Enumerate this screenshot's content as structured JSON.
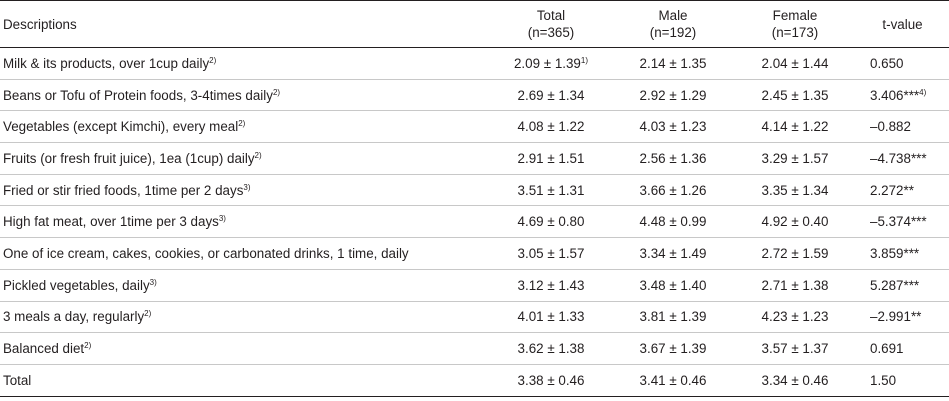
{
  "table": {
    "headers": {
      "descriptions": "Descriptions",
      "total": "Total",
      "total_n": "(n=365)",
      "male": "Male",
      "male_n": "(n=192)",
      "female": "Female",
      "female_n": "(n=173)",
      "tvalue": "t-value"
    },
    "rows": [
      {
        "desc": "Milk & its products, over 1cup daily",
        "desc_sup": "2)",
        "total": "2.09 ± 1.39",
        "total_sup": "1)",
        "male": "2.14 ± 1.35",
        "female": "2.04 ± 1.44",
        "t": "0.650",
        "t_sup": ""
      },
      {
        "desc": "Beans or Tofu of Protein foods, 3-4times daily",
        "desc_sup": "2)",
        "total": "2.69 ± 1.34",
        "total_sup": "",
        "male": "2.92 ± 1.29",
        "female": "2.45 ± 1.35",
        "t": "3.406***",
        "t_sup": "4)"
      },
      {
        "desc": "Vegetables (except Kimchi), every meal",
        "desc_sup": "2)",
        "total": "4.08 ± 1.22",
        "total_sup": "",
        "male": "4.03 ± 1.23",
        "female": "4.14 ± 1.22",
        "t": "–0.882",
        "t_sup": ""
      },
      {
        "desc": "Fruits (or fresh fruit juice), 1ea (1cup) daily",
        "desc_sup": "2)",
        "total": "2.91 ± 1.51",
        "total_sup": "",
        "male": "2.56 ± 1.36",
        "female": "3.29 ± 1.57",
        "t": "–4.738***",
        "t_sup": ""
      },
      {
        "desc": "Fried or stir fried foods, 1time per 2 days",
        "desc_sup": "3)",
        "total": "3.51 ± 1.31",
        "total_sup": "",
        "male": "3.66 ± 1.26",
        "female": "3.35 ± 1.34",
        "t": "2.272**",
        "t_sup": ""
      },
      {
        "desc": "High fat meat, over 1time per 3 days",
        "desc_sup": "3)",
        "total": "4.69 ± 0.80",
        "total_sup": "",
        "male": "4.48 ± 0.99",
        "female": "4.92 ± 0.40",
        "t": "–5.374***",
        "t_sup": ""
      },
      {
        "desc": "One of ice cream, cakes, cookies, or carbonated drinks, 1 time, daily",
        "desc_sup": "",
        "total": "3.05 ± 1.57",
        "total_sup": "",
        "male": "3.34 ± 1.49",
        "female": "2.72 ± 1.59",
        "t": "3.859***",
        "t_sup": ""
      },
      {
        "desc": "Pickled vegetables, daily",
        "desc_sup": "3)",
        "total": "3.12 ± 1.43",
        "total_sup": "",
        "male": "3.48 ± 1.40",
        "female": "2.71 ± 1.38",
        "t": "5.287***",
        "t_sup": ""
      },
      {
        "desc": "3 meals a day, regularly",
        "desc_sup": "2)",
        "total": "4.01 ± 1.33",
        "total_sup": "",
        "male": "3.81 ± 1.39",
        "female": "4.23 ± 1.23",
        "t": "–2.991**",
        "t_sup": ""
      },
      {
        "desc": "Balanced diet",
        "desc_sup": "2)",
        "total": "3.62 ± 1.38",
        "total_sup": "",
        "male": "3.67 ± 1.39",
        "female": "3.57 ± 1.37",
        "t": "0.691",
        "t_sup": ""
      },
      {
        "desc": "Total",
        "desc_sup": "",
        "total": "3.38 ± 0.46",
        "total_sup": "",
        "male": "3.41 ± 0.46",
        "female": "3.34 ± 0.46",
        "t": "1.50",
        "t_sup": ""
      }
    ]
  }
}
